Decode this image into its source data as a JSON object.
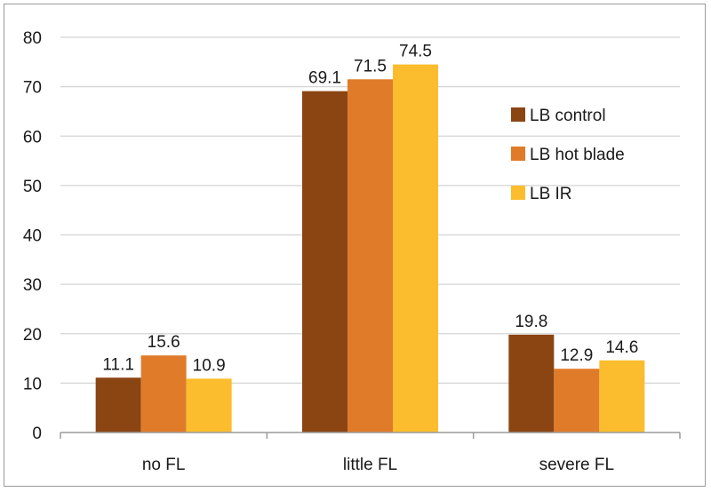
{
  "chart_data": {
    "type": "bar",
    "title": "",
    "xlabel": "",
    "ylabel": "",
    "categories": [
      "no FL",
      "little FL",
      "severe FL"
    ],
    "series": [
      {
        "name": "LB control",
        "values": [
          11.1,
          69.1,
          19.8
        ],
        "color": "#8B4513"
      },
      {
        "name": "LB hot blade",
        "values": [
          15.6,
          71.5,
          12.9
        ],
        "color": "#E07B2A"
      },
      {
        "name": "LB IR",
        "values": [
          10.9,
          74.5,
          14.6
        ],
        "color": "#FBBD2E"
      }
    ],
    "data_labels": [
      [
        "11.1",
        "69.1",
        "19.8"
      ],
      [
        "15.6",
        "71.5",
        "12.9"
      ],
      [
        "10.9",
        "74.5",
        "14.6"
      ]
    ],
    "ylim": [
      0,
      80
    ],
    "yticks": [
      0,
      10,
      20,
      30,
      40,
      50,
      60,
      70,
      80
    ],
    "grid": true,
    "legend_position": "right"
  }
}
